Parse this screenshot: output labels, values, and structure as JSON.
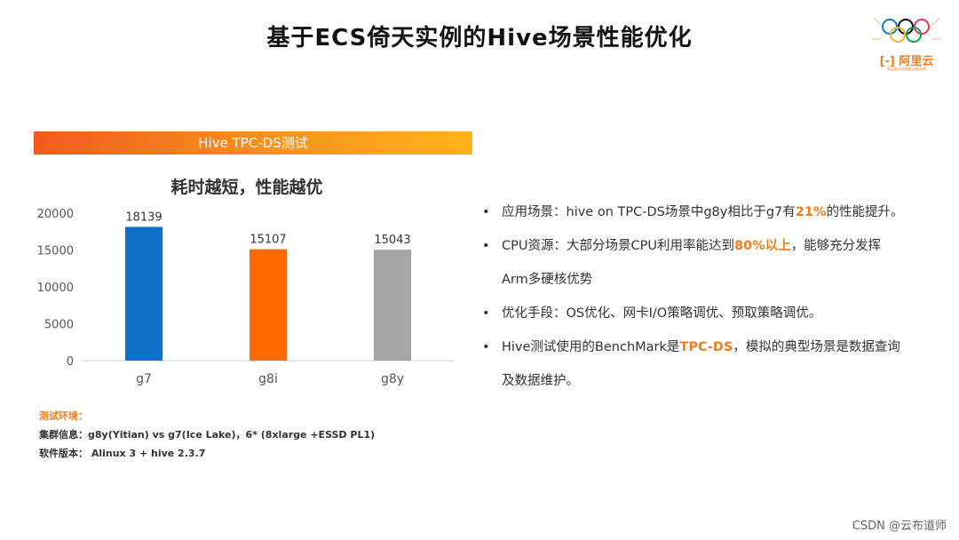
{
  "title": "基于ECS倚天实例的Hive场景性能优化",
  "logo": {
    "text": "阿里云",
    "sub": "奥运会全球指定云服务商"
  },
  "banner": "Hive TPC-DS测试",
  "chart_data": {
    "type": "bar",
    "title": "耗时越短，性能越优",
    "categories": [
      "g7",
      "g8i",
      "g8y"
    ],
    "values": [
      18139,
      15107,
      15043
    ],
    "colors": [
      "#0f6fc6",
      "#ff6a00",
      "#a6a6a6"
    ],
    "ylim": [
      0,
      20000
    ],
    "yticks": [
      0,
      5000,
      10000,
      15000,
      20000
    ],
    "grid": false,
    "xlabel": "",
    "ylabel": ""
  },
  "env": {
    "label": "测试环境：",
    "cluster": "集群信息：g8y(Yitian) vs g7(Ice Lake)，6* (8xlarge +ESSD PL1)",
    "software": "软件版本： Alinux 3 + hive 2.3.7"
  },
  "bullets": [
    {
      "pre": "应用场景：hive on TPC-DS场景中g8y相比于g7有",
      "hl": "21%",
      "post": "的性能提升。",
      "cont": ""
    },
    {
      "pre": "CPU资源：大部分场景CPU利用率能达到",
      "hl": "80%以上",
      "post": "，能够充分发挥",
      "cont": "Arm多硬核优势"
    },
    {
      "pre": "优化手段：OS优化、网卡I/O策略调优、预取策略调优。",
      "hl": "",
      "post": "",
      "cont": ""
    },
    {
      "pre": "Hive测试使用的BenchMark是",
      "hl": "TPC-DS",
      "post": "，模拟的典型场景是数据查询",
      "cont": "及数据维护。"
    }
  ],
  "bullet_char": "•",
  "watermark": "CSDN @云布道师"
}
